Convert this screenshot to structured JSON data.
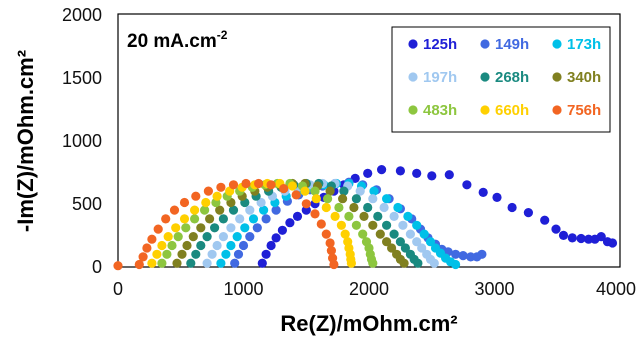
{
  "chart_data": {
    "type": "scatter",
    "xlabel": "Re(Z)/mOhm.cm²",
    "ylabel": "-Im(Z)/mOhm.cm²",
    "xlim": [
      0,
      4000
    ],
    "ylim": [
      0,
      2000
    ],
    "xticks": [
      "0",
      "1000",
      "2000",
      "3000",
      "4000"
    ],
    "yticks": [
      "0",
      "500",
      "1000",
      "1500",
      "2000"
    ],
    "annotation": {
      "main": "20 mA.cm",
      "superscript": "-2"
    },
    "legend_placement": "top-right",
    "grid": false,
    "series": [
      {
        "name": "125h",
        "color": "#1f1fd6",
        "points": [
          [
            1150,
            30
          ],
          [
            1180,
            100
          ],
          [
            1220,
            170
          ],
          [
            1260,
            230
          ],
          [
            1310,
            290
          ],
          [
            1370,
            350
          ],
          [
            1430,
            400
          ],
          [
            1500,
            450
          ],
          [
            1570,
            500
          ],
          [
            1640,
            550
          ],
          [
            1720,
            600
          ],
          [
            1800,
            650
          ],
          [
            1890,
            700
          ],
          [
            1990,
            740
          ],
          [
            2100,
            770
          ],
          [
            2250,
            760
          ],
          [
            2380,
            740
          ],
          [
            2500,
            720
          ],
          [
            2640,
            730
          ],
          [
            2780,
            650
          ],
          [
            2910,
            590
          ],
          [
            3020,
            550
          ],
          [
            3140,
            470
          ],
          [
            3270,
            430
          ],
          [
            3400,
            370
          ],
          [
            3490,
            300
          ],
          [
            3550,
            250
          ],
          [
            3620,
            230
          ],
          [
            3690,
            225
          ],
          [
            3750,
            220
          ],
          [
            3800,
            220
          ],
          [
            3850,
            240
          ],
          [
            3900,
            200
          ],
          [
            3940,
            190
          ]
        ]
      },
      {
        "name": "149h",
        "color": "#4169e1",
        "points": [
          [
            930,
            30
          ],
          [
            960,
            100
          ],
          [
            1000,
            170
          ],
          [
            1050,
            240
          ],
          [
            1110,
            310
          ],
          [
            1180,
            380
          ],
          [
            1260,
            450
          ],
          [
            1350,
            520
          ],
          [
            1440,
            570
          ],
          [
            1530,
            610
          ],
          [
            1630,
            640
          ],
          [
            1730,
            660
          ],
          [
            1840,
            670
          ],
          [
            1950,
            650
          ],
          [
            2060,
            610
          ],
          [
            2160,
            540
          ],
          [
            2250,
            460
          ],
          [
            2340,
            380
          ],
          [
            2410,
            300
          ],
          [
            2470,
            230
          ],
          [
            2530,
            180
          ],
          [
            2580,
            140
          ],
          [
            2630,
            120
          ],
          [
            2690,
            100
          ],
          [
            2750,
            90
          ],
          [
            2810,
            80
          ],
          [
            2860,
            80
          ],
          [
            2900,
            100
          ]
        ]
      },
      {
        "name": "173h",
        "color": "#00c0e8",
        "points": [
          [
            820,
            30
          ],
          [
            860,
            100
          ],
          [
            900,
            170
          ],
          [
            950,
            240
          ],
          [
            1010,
            310
          ],
          [
            1080,
            380
          ],
          [
            1160,
            450
          ],
          [
            1250,
            510
          ],
          [
            1340,
            560
          ],
          [
            1440,
            600
          ],
          [
            1540,
            630
          ],
          [
            1640,
            650
          ],
          [
            1740,
            660
          ],
          [
            1840,
            660
          ],
          [
            1940,
            640
          ],
          [
            2040,
            600
          ],
          [
            2140,
            540
          ],
          [
            2230,
            470
          ],
          [
            2310,
            400
          ],
          [
            2380,
            330
          ],
          [
            2440,
            260
          ],
          [
            2490,
            200
          ],
          [
            2530,
            150
          ],
          [
            2570,
            110
          ],
          [
            2610,
            70
          ],
          [
            2650,
            40
          ],
          [
            2690,
            20
          ]
        ]
      },
      {
        "name": "197h",
        "color": "#a0c8f0",
        "points": [
          [
            710,
            30
          ],
          [
            750,
            100
          ],
          [
            790,
            170
          ],
          [
            840,
            240
          ],
          [
            900,
            310
          ],
          [
            970,
            380
          ],
          [
            1050,
            450
          ],
          [
            1140,
            510
          ],
          [
            1230,
            560
          ],
          [
            1330,
            600
          ],
          [
            1430,
            630
          ],
          [
            1530,
            650
          ],
          [
            1630,
            660
          ],
          [
            1730,
            660
          ],
          [
            1830,
            640
          ],
          [
            1930,
            600
          ],
          [
            2030,
            540
          ],
          [
            2120,
            470
          ],
          [
            2200,
            400
          ],
          [
            2270,
            330
          ],
          [
            2330,
            260
          ],
          [
            2380,
            200
          ],
          [
            2420,
            150
          ],
          [
            2460,
            100
          ],
          [
            2490,
            60
          ],
          [
            2520,
            30
          ]
        ]
      },
      {
        "name": "268h",
        "color": "#1a8a80",
        "points": [
          [
            580,
            30
          ],
          [
            620,
            100
          ],
          [
            660,
            170
          ],
          [
            710,
            240
          ],
          [
            770,
            310
          ],
          [
            840,
            380
          ],
          [
            920,
            450
          ],
          [
            1010,
            510
          ],
          [
            1100,
            560
          ],
          [
            1200,
            600
          ],
          [
            1300,
            630
          ],
          [
            1400,
            650
          ],
          [
            1500,
            660
          ],
          [
            1600,
            660
          ],
          [
            1700,
            640
          ],
          [
            1800,
            600
          ],
          [
            1900,
            540
          ],
          [
            1990,
            470
          ],
          [
            2070,
            400
          ],
          [
            2140,
            330
          ],
          [
            2200,
            260
          ],
          [
            2250,
            200
          ],
          [
            2290,
            150
          ],
          [
            2330,
            100
          ],
          [
            2360,
            60
          ],
          [
            2390,
            30
          ]
        ]
      },
      {
        "name": "340h",
        "color": "#808020",
        "points": [
          [
            470,
            30
          ],
          [
            510,
            100
          ],
          [
            550,
            170
          ],
          [
            600,
            240
          ],
          [
            660,
            310
          ],
          [
            730,
            380
          ],
          [
            810,
            450
          ],
          [
            900,
            510
          ],
          [
            990,
            560
          ],
          [
            1090,
            600
          ],
          [
            1190,
            630
          ],
          [
            1290,
            650
          ],
          [
            1390,
            660
          ],
          [
            1490,
            660
          ],
          [
            1590,
            640
          ],
          [
            1690,
            600
          ],
          [
            1790,
            540
          ],
          [
            1880,
            470
          ],
          [
            1960,
            400
          ],
          [
            2030,
            330
          ],
          [
            2090,
            260
          ],
          [
            2140,
            200
          ],
          [
            2180,
            150
          ],
          [
            2220,
            100
          ],
          [
            2250,
            60
          ],
          [
            2280,
            30
          ]
        ]
      },
      {
        "name": "483h",
        "color": "#8dc63f",
        "points": [
          [
            350,
            30
          ],
          [
            390,
            100
          ],
          [
            430,
            170
          ],
          [
            480,
            240
          ],
          [
            540,
            310
          ],
          [
            610,
            380
          ],
          [
            690,
            450
          ],
          [
            780,
            510
          ],
          [
            870,
            560
          ],
          [
            970,
            600
          ],
          [
            1070,
            630
          ],
          [
            1170,
            650
          ],
          [
            1270,
            660
          ],
          [
            1370,
            660
          ],
          [
            1470,
            640
          ],
          [
            1570,
            600
          ],
          [
            1670,
            540
          ],
          [
            1760,
            470
          ],
          [
            1840,
            400
          ],
          [
            1900,
            330
          ],
          [
            1950,
            260
          ],
          [
            1980,
            200
          ],
          [
            2000,
            150
          ],
          [
            2010,
            100
          ],
          [
            2020,
            60
          ],
          [
            2030,
            30
          ]
        ]
      },
      {
        "name": "660h",
        "color": "#ffd000",
        "points": [
          [
            270,
            30
          ],
          [
            310,
            100
          ],
          [
            350,
            170
          ],
          [
            400,
            240
          ],
          [
            460,
            310
          ],
          [
            530,
            380
          ],
          [
            610,
            450
          ],
          [
            700,
            510
          ],
          [
            790,
            560
          ],
          [
            890,
            600
          ],
          [
            990,
            630
          ],
          [
            1090,
            650
          ],
          [
            1190,
            660
          ],
          [
            1290,
            660
          ],
          [
            1390,
            640
          ],
          [
            1490,
            600
          ],
          [
            1580,
            540
          ],
          [
            1660,
            470
          ],
          [
            1730,
            400
          ],
          [
            1780,
            330
          ],
          [
            1810,
            260
          ],
          [
            1830,
            200
          ],
          [
            1840,
            150
          ],
          [
            1850,
            100
          ],
          [
            1855,
            60
          ],
          [
            1860,
            30
          ]
        ]
      },
      {
        "name": "756h",
        "color": "#f26522",
        "points": [
          [
            0,
            10
          ],
          [
            170,
            20
          ],
          [
            200,
            80
          ],
          [
            230,
            150
          ],
          [
            270,
            220
          ],
          [
            320,
            300
          ],
          [
            380,
            380
          ],
          [
            450,
            450
          ],
          [
            530,
            510
          ],
          [
            620,
            560
          ],
          [
            720,
            600
          ],
          [
            820,
            630
          ],
          [
            920,
            650
          ],
          [
            1020,
            660
          ],
          [
            1120,
            660
          ],
          [
            1220,
            650
          ],
          [
            1320,
            620
          ],
          [
            1420,
            570
          ],
          [
            1500,
            500
          ],
          [
            1570,
            420
          ],
          [
            1620,
            340
          ],
          [
            1660,
            260
          ],
          [
            1690,
            190
          ],
          [
            1700,
            130
          ],
          [
            1710,
            70
          ],
          [
            1720,
            20
          ]
        ]
      }
    ]
  }
}
